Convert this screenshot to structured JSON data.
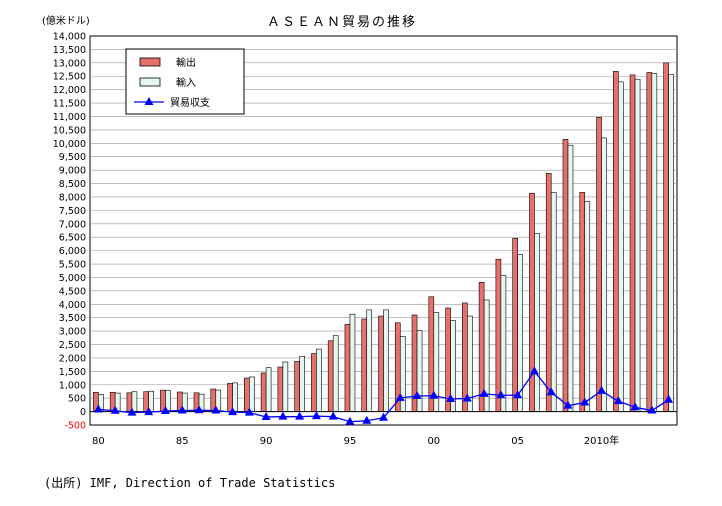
{
  "chart_data": {
    "type": "bar",
    "title": "ＡＳＥＡＮ貿易の推移",
    "ylabel": "(億米ドル)",
    "xlabel": "",
    "ylim": [
      -500,
      14000
    ],
    "ytick_step": 500,
    "grid": true,
    "legend_position": "top-left",
    "x": [
      1980,
      1981,
      1982,
      1983,
      1984,
      1985,
      1986,
      1987,
      1988,
      1989,
      1990,
      1991,
      1992,
      1993,
      1994,
      1995,
      1996,
      1997,
      1998,
      1999,
      2000,
      2001,
      2002,
      2003,
      2004,
      2005,
      2006,
      2007,
      2008,
      2009,
      2010,
      2011,
      2012,
      2013,
      2014
    ],
    "x_tick_labels": [
      {
        "x": 1980,
        "label": "80"
      },
      {
        "x": 1985,
        "label": "85"
      },
      {
        "x": 1990,
        "label": "90"
      },
      {
        "x": 1995,
        "label": "95"
      },
      {
        "x": 2000,
        "label": "00"
      },
      {
        "x": 2005,
        "label": "05"
      },
      {
        "x": 2010,
        "label": "2010年"
      }
    ],
    "series": [
      {
        "name": "輸出",
        "kind": "bar",
        "color": "#e8706a",
        "values": [
          720,
          720,
          700,
          740,
          800,
          730,
          700,
          840,
          1050,
          1250,
          1440,
          1660,
          1870,
          2160,
          2640,
          3250,
          3450,
          3560,
          3310,
          3600,
          4280,
          3860,
          4050,
          4820,
          5680,
          6460,
          8140,
          8880,
          10150,
          8170,
          10970,
          12680,
          12550,
          12640,
          13000
        ]
      },
      {
        "name": "輸入",
        "kind": "bar",
        "color": "#e6f7f2",
        "values": [
          640,
          690,
          740,
          760,
          780,
          690,
          650,
          800,
          1070,
          1290,
          1640,
          1850,
          2060,
          2330,
          2830,
          3630,
          3790,
          3790,
          2800,
          3020,
          3690,
          3390,
          3560,
          4160,
          5070,
          5850,
          6640,
          8160,
          9930,
          7830,
          10200,
          12290,
          12390,
          12600,
          12560
        ]
      },
      {
        "name": "貿易収支",
        "kind": "line",
        "color": "#0000ff",
        "values": [
          80,
          30,
          -40,
          -20,
          20,
          40,
          50,
          40,
          -20,
          -40,
          -200,
          -190,
          -190,
          -170,
          -190,
          -380,
          -340,
          -230,
          510,
          580,
          590,
          470,
          490,
          660,
          610,
          610,
          1500,
          720,
          220,
          340,
          770,
          390,
          160,
          40,
          440
        ]
      }
    ]
  }
}
